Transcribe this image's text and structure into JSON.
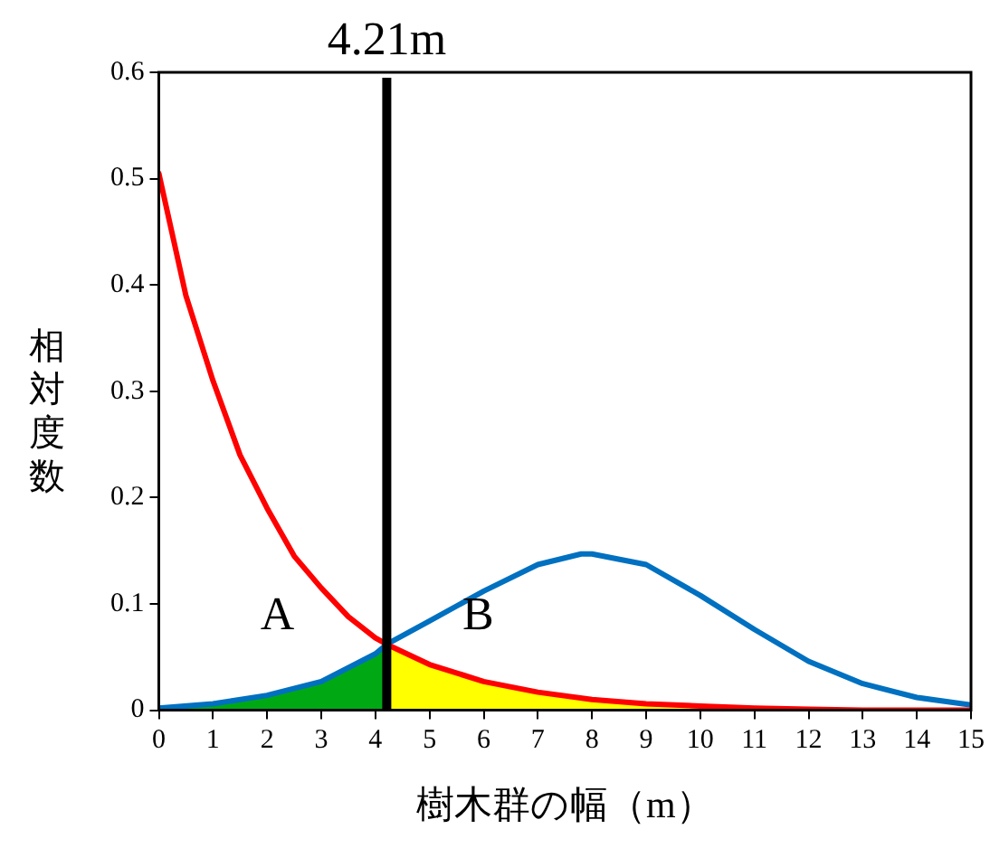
{
  "chart_data": {
    "type": "line",
    "xlabel": "樹木群の幅（m）",
    "ylabel": "相対度数",
    "xlim": [
      0,
      15
    ],
    "xticks": [
      0,
      1,
      2,
      3,
      4,
      5,
      6,
      7,
      8,
      9,
      10,
      11,
      12,
      13,
      14,
      15
    ],
    "ylim": [
      0,
      0.6
    ],
    "yticks": [
      0,
      0.1,
      0.2,
      0.3,
      0.4,
      0.5,
      0.6
    ],
    "grid": false,
    "legend": false,
    "marker": "none",
    "line_style": "solid",
    "series": [
      {
        "type": "area",
        "color": "#00a914",
        "x": [
          0,
          1,
          2,
          3,
          4,
          4.21
        ],
        "values": [
          0.002,
          0.006,
          0.014,
          0.027,
          0.053,
          0.062
        ]
      },
      {
        "type": "area",
        "color": "#ffff00",
        "x": [
          4.21,
          5,
          6,
          7,
          8,
          9,
          10,
          10.7
        ],
        "values": [
          0.062,
          0.043,
          0.027,
          0.017,
          0.01,
          0.006,
          0.003,
          0.001
        ]
      },
      {
        "type": "line",
        "color": "#ff0000",
        "x": [
          0,
          0.5,
          1,
          1.5,
          2,
          2.5,
          3,
          3.5,
          4,
          4.21,
          5,
          6,
          7,
          8,
          9,
          10,
          11,
          12,
          13,
          14,
          15
        ],
        "values": [
          0.505,
          0.39,
          0.31,
          0.24,
          0.19,
          0.145,
          0.115,
          0.088,
          0.068,
          0.062,
          0.043,
          0.027,
          0.017,
          0.01,
          0.006,
          0.004,
          0.002,
          0.001,
          0,
          0,
          0
        ]
      },
      {
        "type": "line",
        "color": "#0070c0",
        "x": [
          0,
          1,
          2,
          3,
          4,
          4.21,
          5,
          6,
          7,
          7.8,
          8,
          9,
          10,
          11,
          12,
          13,
          14,
          15
        ],
        "values": [
          0.002,
          0.006,
          0.014,
          0.027,
          0.053,
          0.062,
          0.084,
          0.112,
          0.137,
          0.147,
          0.147,
          0.137,
          0.108,
          0.076,
          0.046,
          0.025,
          0.012,
          0.005
        ]
      }
    ],
    "ref_lines": [
      {
        "axis": "x",
        "value": 4.21,
        "label": "4.21m",
        "color": "#000000"
      }
    ],
    "annotations": [
      "A",
      "B"
    ]
  }
}
